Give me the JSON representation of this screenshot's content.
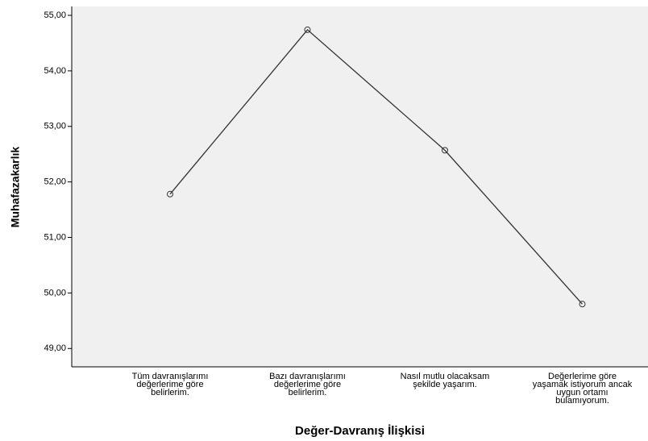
{
  "chart_data": {
    "type": "line",
    "x_label": "Değer-Davranış İlişkisi",
    "y_label": "Muhafazakarlık",
    "categories": [
      "Tüm davranışlarımı\ndeğerlerime göre\nbelirlerim.",
      "Bazı davranışlarımı\ndeğerlerime göre\nbelirlerim.",
      "Nasıl mutlu olacaksam\nşekilde yaşarım.",
      "Değerlerime göre\nyaşamak istiyorum ancak\nuygun ortamı\nbulamıyorum."
    ],
    "series": [
      {
        "name": "Muhafazakarlık",
        "color": "#333333",
        "values": [
          51.78,
          54.74,
          52.57,
          49.8
        ]
      }
    ],
    "ylim": [
      48.67,
      55.16
    ],
    "yticks": [
      {
        "value": 49,
        "label": "49,00"
      },
      {
        "value": 50,
        "label": "50,00"
      },
      {
        "value": 51,
        "label": "51,00"
      },
      {
        "value": 52,
        "label": "52,00"
      },
      {
        "value": 53,
        "label": "53,00"
      },
      {
        "value": 54,
        "label": "54,00"
      },
      {
        "value": 55,
        "label": "55,00"
      }
    ],
    "grid": false
  }
}
